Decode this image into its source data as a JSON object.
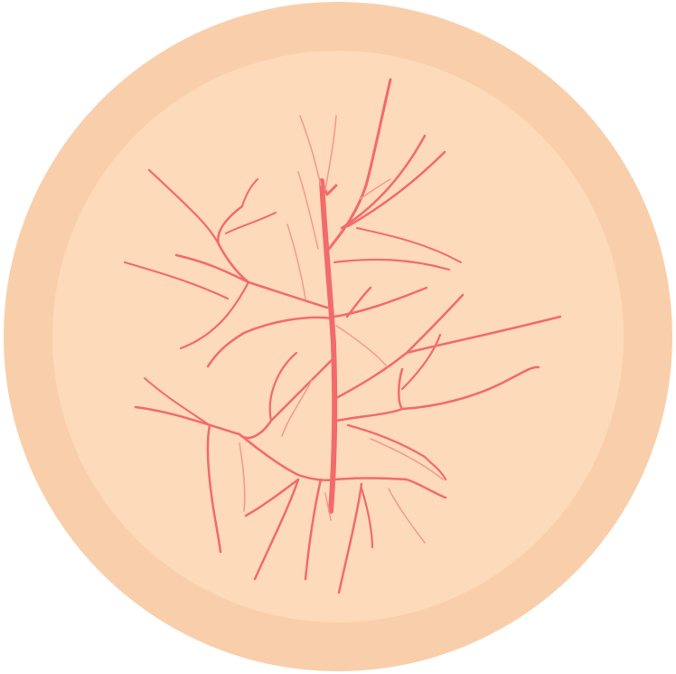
{
  "illustration": {
    "subject": "skin-with-spider-veins",
    "colors": {
      "background": "#ffffff",
      "outer_ring": "#f8cfaa",
      "inner_disc": "#fddab9",
      "vein_main": "#f26b6b",
      "vein_faint": "#f39a8e"
    }
  }
}
